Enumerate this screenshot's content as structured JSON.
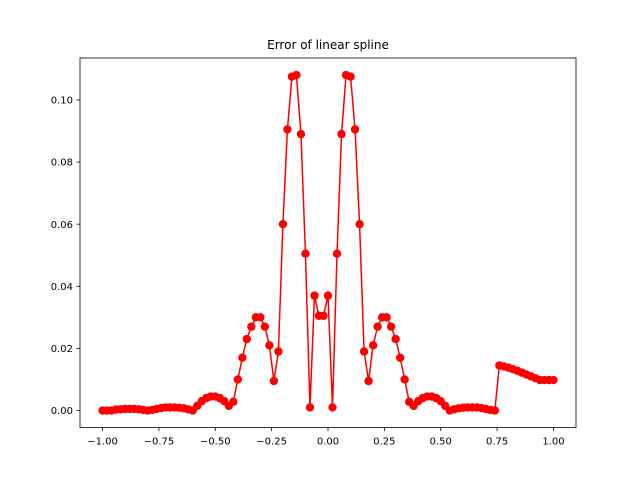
{
  "chart_data": {
    "type": "line",
    "title": "Error of linear spline",
    "xlabel": "",
    "ylabel": "",
    "xlim": [
      -1.1,
      1.1
    ],
    "ylim": [
      -0.0055,
      0.1135
    ],
    "xticks": [
      -1.0,
      -0.75,
      -0.5,
      -0.25,
      0.0,
      0.25,
      0.5,
      0.75,
      1.0
    ],
    "xtick_labels": [
      "−1.00",
      "−0.75",
      "−0.50",
      "−0.25",
      "0.00",
      "0.25",
      "0.50",
      "0.75",
      "1.00"
    ],
    "yticks": [
      0.0,
      0.02,
      0.04,
      0.06,
      0.08,
      0.1
    ],
    "ytick_labels": [
      "0.00",
      "0.02",
      "0.04",
      "0.06",
      "0.08",
      "0.10"
    ],
    "grid": false,
    "series": [
      {
        "color": "#ff0000",
        "marker": "circle",
        "x": [
          -1.0,
          -0.98,
          -0.96,
          -0.94,
          -0.92,
          -0.9,
          -0.88,
          -0.86,
          -0.84,
          -0.82,
          -0.8,
          -0.78,
          -0.76,
          -0.74,
          -0.72,
          -0.7,
          -0.68,
          -0.66,
          -0.64,
          -0.62,
          -0.6,
          -0.58,
          -0.56,
          -0.54,
          -0.52,
          -0.5,
          -0.48,
          -0.46,
          -0.44,
          -0.42,
          -0.4,
          -0.38,
          -0.36,
          -0.34,
          -0.32,
          -0.3,
          -0.28,
          -0.26,
          -0.24,
          -0.22,
          -0.2,
          -0.18,
          -0.16,
          -0.14,
          -0.12,
          -0.1,
          -0.08,
          -0.06,
          -0.04,
          -0.02,
          0.0,
          0.02,
          0.04,
          0.06,
          0.08,
          0.1,
          0.12,
          0.14,
          0.16,
          0.18,
          0.2,
          0.22,
          0.24,
          0.26,
          0.28,
          0.3,
          0.32,
          0.34,
          0.36,
          0.38,
          0.4,
          0.42,
          0.44,
          0.46,
          0.48,
          0.5,
          0.52,
          0.54,
          0.56,
          0.58,
          0.6,
          0.62,
          0.64,
          0.66,
          0.68,
          0.7,
          0.72,
          0.74,
          0.76,
          0.78,
          0.8,
          0.82,
          0.84,
          0.86,
          0.88,
          0.9,
          0.92,
          0.94,
          0.96,
          0.98,
          1.0
        ],
        "y": [
          0.0,
          0.0,
          0.0,
          0.0003,
          0.0004,
          0.0005,
          0.0005,
          0.0005,
          0.0004,
          0.0002,
          0.0,
          0.0002,
          0.0005,
          0.0008,
          0.001,
          0.001,
          0.001,
          0.0009,
          0.0007,
          0.0004,
          0.0,
          0.0015,
          0.003,
          0.004,
          0.0045,
          0.0045,
          0.004,
          0.003,
          0.0015,
          0.0028,
          0.01,
          0.017,
          0.023,
          0.027,
          0.03,
          0.03,
          0.027,
          0.021,
          0.0095,
          0.019,
          0.06,
          0.0905,
          0.1075,
          0.108,
          0.089,
          0.0505,
          0.001,
          0.037,
          0.0305,
          0.0305,
          0.037,
          0.001,
          0.0505,
          0.089,
          0.108,
          0.1075,
          0.0905,
          0.06,
          0.019,
          0.0095,
          0.021,
          0.027,
          0.03,
          0.03,
          0.027,
          0.023,
          0.017,
          0.01,
          0.0028,
          0.0015,
          0.003,
          0.004,
          0.0045,
          0.0045,
          0.004,
          0.003,
          0.0015,
          0.0,
          0.0004,
          0.0007,
          0.0009,
          0.001,
          0.001,
          0.001,
          0.0008,
          0.0005,
          0.0002,
          0.0,
          0.0145,
          0.0142,
          0.0138,
          0.0133,
          0.0128,
          0.0122,
          0.0116,
          0.011,
          0.0104,
          0.0098,
          0.0098,
          0.0098,
          0.0098
        ]
      }
    ]
  }
}
